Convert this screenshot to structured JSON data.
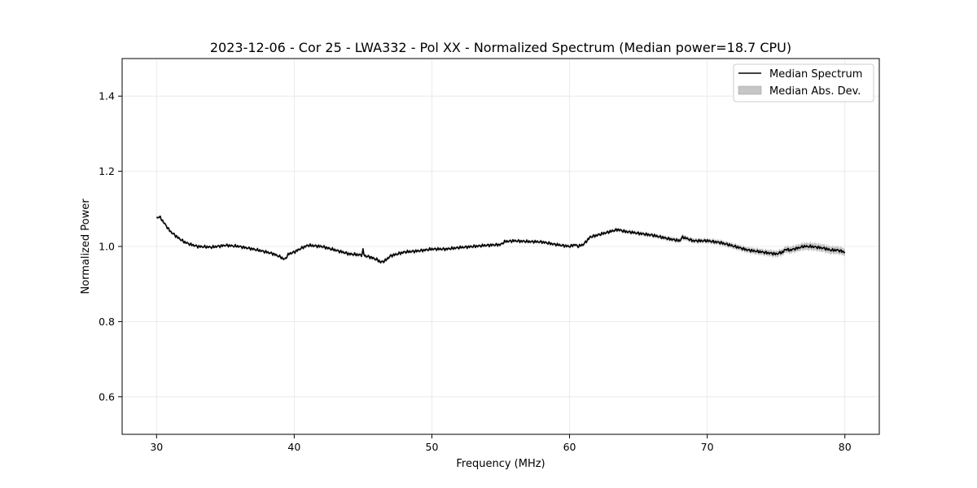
{
  "chart_data": {
    "type": "line",
    "title": "2023-12-06 - Cor 25 - LWA332 - Pol XX - Normalized Spectrum (Median power=18.7 CPU)",
    "xlabel": "Frequency (MHz)",
    "ylabel": "Normalized Power",
    "xlim": [
      27.5,
      82.5
    ],
    "ylim": [
      0.5,
      1.5
    ],
    "xticks": [
      30,
      40,
      50,
      60,
      70,
      80
    ],
    "yticks": [
      0.6,
      0.8,
      1.0,
      1.2,
      1.4
    ],
    "xtick_labels": [
      "30",
      "40",
      "50",
      "60",
      "70",
      "80"
    ],
    "ytick_labels": [
      "0.6",
      "0.8",
      "1.0",
      "1.2",
      "1.4"
    ],
    "grid": true,
    "legend_position": "top-right",
    "legend": [
      "Median Spectrum",
      "Median Abs. Dev."
    ],
    "colors": {
      "line": "#000000",
      "band": "#b3b3b3",
      "grid": "#e6e6e6"
    },
    "series": [
      {
        "name": "Median Spectrum",
        "x": [
          30.0,
          30.2,
          30.4,
          30.6,
          30.8,
          31.0,
          31.5,
          32.0,
          32.5,
          33.0,
          34.0,
          35.0,
          36.0,
          37.0,
          38.0,
          38.5,
          39.0,
          39.3,
          39.6,
          40.0,
          40.5,
          41.0,
          42.0,
          43.0,
          44.0,
          44.9,
          45.0,
          45.1,
          45.5,
          46.0,
          46.3,
          46.6,
          47.0,
          47.5,
          48.0,
          49.0,
          50.0,
          51.0,
          52.0,
          53.0,
          54.0,
          55.0,
          55.3,
          56.0,
          57.0,
          58.0,
          59.0,
          60.0,
          60.4,
          60.6,
          61.0,
          61.5,
          62.0,
          63.0,
          63.5,
          64.0,
          65.0,
          66.0,
          67.0,
          68.0,
          68.2,
          69.0,
          70.0,
          71.0,
          72.0,
          73.0,
          74.0,
          75.0,
          75.5,
          75.7,
          76.0,
          76.5,
          77.0,
          77.5,
          78.0,
          78.5,
          79.0,
          79.5,
          80.0
        ],
        "y": [
          1.075,
          1.08,
          1.07,
          1.06,
          1.05,
          1.04,
          1.025,
          1.012,
          1.005,
          1.0,
          0.998,
          1.003,
          1.0,
          0.993,
          0.985,
          0.98,
          0.972,
          0.965,
          0.98,
          0.985,
          0.995,
          1.003,
          1.0,
          0.99,
          0.98,
          0.977,
          0.99,
          0.975,
          0.972,
          0.965,
          0.958,
          0.962,
          0.975,
          0.98,
          0.985,
          0.988,
          0.993,
          0.993,
          0.997,
          1.0,
          1.003,
          1.005,
          1.013,
          1.015,
          1.013,
          1.012,
          1.005,
          1.0,
          1.005,
          1.0,
          1.005,
          1.025,
          1.03,
          1.04,
          1.045,
          1.04,
          1.035,
          1.03,
          1.022,
          1.015,
          1.025,
          1.015,
          1.015,
          1.01,
          1.0,
          0.99,
          0.985,
          0.98,
          0.985,
          0.993,
          0.99,
          0.995,
          1.0,
          1.0,
          0.998,
          0.995,
          0.99,
          0.99,
          0.985
        ]
      }
    ],
    "mad_band": {
      "name": "Median Abs. Dev.",
      "x": [
        30.0,
        35.0,
        40.0,
        45.0,
        50.0,
        55.0,
        60.0,
        65.0,
        68.0,
        70.0,
        72.0,
        74.0,
        76.0,
        78.0,
        80.0
      ],
      "dev": [
        0.004,
        0.003,
        0.004,
        0.005,
        0.004,
        0.004,
        0.004,
        0.005,
        0.006,
        0.006,
        0.007,
        0.008,
        0.009,
        0.01,
        0.01
      ]
    }
  }
}
